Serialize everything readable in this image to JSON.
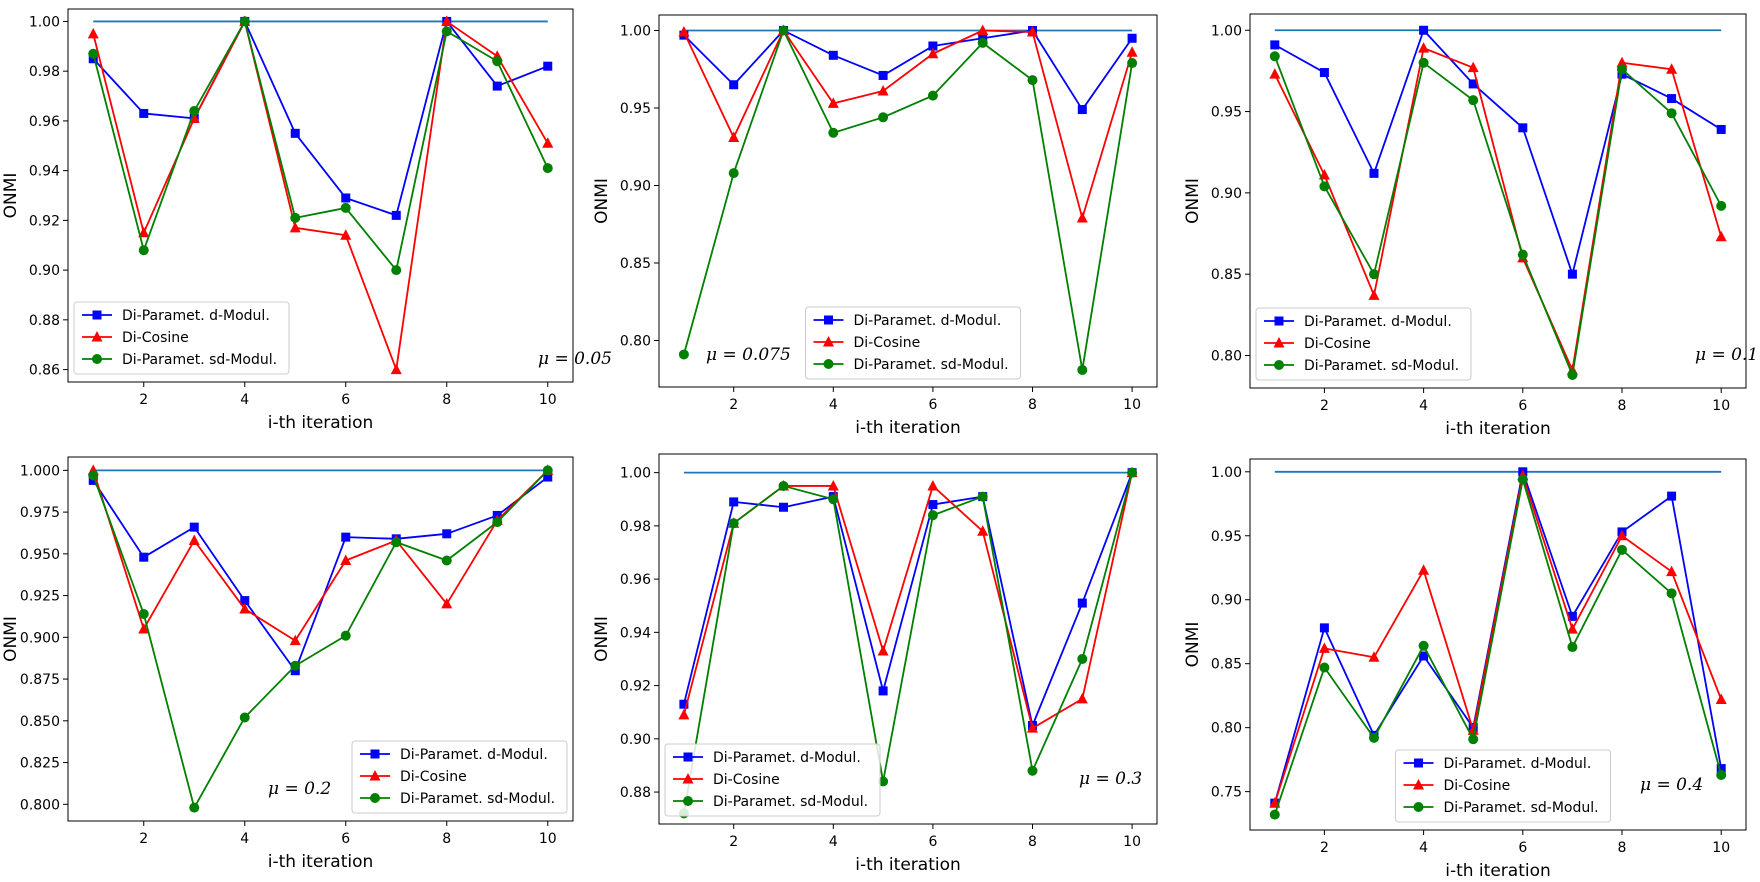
{
  "chart_data": [
    {
      "type": "line",
      "panel": "a",
      "annotation": "μ = 0.05",
      "xlabel": "i-th iteration",
      "ylabel": "ONMI",
      "xlim": [
        0.5,
        10.5
      ],
      "ylim": [
        0.855,
        1.005
      ],
      "xticks": [
        "2",
        "4",
        "6",
        "8",
        "10"
      ],
      "yticks": [
        "0.86",
        "0.88",
        "0.90",
        "0.92",
        "0.94",
        "0.96",
        "0.98",
        "1.00"
      ],
      "legend_position": "lower-left",
      "x": [
        1,
        2,
        3,
        4,
        5,
        6,
        7,
        8,
        9,
        10
      ],
      "series": [
        {
          "name": "",
          "color": "#1f77b4",
          "marker": "none",
          "values": [
            1,
            1,
            1,
            1,
            1,
            1,
            1,
            1,
            1,
            1
          ]
        },
        {
          "name": "Di-Paramet. d-Modul.",
          "color": "#0000ff",
          "marker": "square",
          "values": [
            0.985,
            0.963,
            0.961,
            1.0,
            0.955,
            0.929,
            0.922,
            1.0,
            0.974,
            0.982
          ]
        },
        {
          "name": "Di-Cosine",
          "color": "#ff0000",
          "marker": "triangle",
          "values": [
            0.995,
            0.915,
            0.961,
            1.0,
            0.917,
            0.914,
            0.86,
            1.0,
            0.986,
            0.951
          ]
        },
        {
          "name": "Di-Paramet. sd-Modul.",
          "color": "#008000",
          "marker": "circle",
          "values": [
            0.987,
            0.908,
            0.964,
            1.0,
            0.921,
            0.925,
            0.9,
            0.996,
            0.984,
            0.941
          ]
        }
      ]
    },
    {
      "type": "line",
      "panel": "b",
      "annotation": "μ = 0.075",
      "xlabel": "i-th iteration",
      "ylabel": "ONMI",
      "xlim": [
        0.5,
        10.5
      ],
      "ylim": [
        0.77,
        1.01
      ],
      "xticks": [
        "2",
        "4",
        "6",
        "8",
        "10"
      ],
      "yticks": [
        "0.80",
        "0.85",
        "0.90",
        "0.95",
        "1.00"
      ],
      "legend_position": "lower-center",
      "x": [
        1,
        2,
        3,
        4,
        5,
        6,
        7,
        8,
        9,
        10
      ],
      "series": [
        {
          "name": "",
          "color": "#1f77b4",
          "marker": "none",
          "values": [
            1,
            1,
            1,
            1,
            1,
            1,
            1,
            1,
            1,
            1
          ]
        },
        {
          "name": "Di-Paramet. d-Modul.",
          "color": "#0000ff",
          "marker": "square",
          "values": [
            0.997,
            0.965,
            1.0,
            0.984,
            0.971,
            0.99,
            0.995,
            1.0,
            0.949,
            0.995
          ]
        },
        {
          "name": "Di-Cosine",
          "color": "#ff0000",
          "marker": "triangle",
          "values": [
            0.999,
            0.931,
            1.0,
            0.953,
            0.961,
            0.985,
            1.0,
            0.999,
            0.879,
            0.986
          ]
        },
        {
          "name": "Di-Paramet. sd-Modul.",
          "color": "#008000",
          "marker": "circle",
          "values": [
            0.791,
            0.908,
            1.0,
            0.934,
            0.944,
            0.958,
            0.992,
            0.968,
            0.781,
            0.979
          ]
        }
      ]
    },
    {
      "type": "line",
      "panel": "c",
      "annotation": "μ = 0.1",
      "xlabel": "i-th iteration",
      "ylabel": "ONMI",
      "xlim": [
        0.5,
        10.5
      ],
      "ylim": [
        0.78,
        1.01
      ],
      "xticks": [
        "2",
        "4",
        "6",
        "8",
        "10"
      ],
      "yticks": [
        "0.80",
        "0.85",
        "0.90",
        "0.95",
        "1.00"
      ],
      "legend_position": "lower-left",
      "x": [
        1,
        2,
        3,
        4,
        5,
        6,
        7,
        8,
        9,
        10
      ],
      "series": [
        {
          "name": "",
          "color": "#1f77b4",
          "marker": "none",
          "values": [
            1,
            1,
            1,
            1,
            1,
            1,
            1,
            1,
            1,
            1
          ]
        },
        {
          "name": "Di-Paramet. d-Modul.",
          "color": "#0000ff",
          "marker": "square",
          "values": [
            0.991,
            0.974,
            0.912,
            1.0,
            0.967,
            0.94,
            0.85,
            0.973,
            0.958,
            0.939
          ]
        },
        {
          "name": "Di-Cosine",
          "color": "#ff0000",
          "marker": "triangle",
          "values": [
            0.973,
            0.911,
            0.837,
            0.989,
            0.977,
            0.86,
            0.791,
            0.98,
            0.976,
            0.873
          ]
        },
        {
          "name": "Di-Paramet. sd-Modul.",
          "color": "#008000",
          "marker": "circle",
          "values": [
            0.984,
            0.904,
            0.85,
            0.98,
            0.957,
            0.862,
            0.788,
            0.976,
            0.949,
            0.892
          ]
        }
      ]
    },
    {
      "type": "line",
      "panel": "d",
      "annotation": "μ = 0.2",
      "xlabel": "i-th iteration",
      "ylabel": "ONMI",
      "xlim": [
        0.5,
        10.5
      ],
      "ylim": [
        0.79,
        1.008
      ],
      "xticks": [
        "2",
        "4",
        "6",
        "8",
        "10"
      ],
      "yticks": [
        "0.800",
        "0.825",
        "0.850",
        "0.875",
        "0.900",
        "0.925",
        "0.950",
        "0.975",
        "1.000"
      ],
      "legend_position": "lower-right",
      "x": [
        1,
        2,
        3,
        4,
        5,
        6,
        7,
        8,
        9,
        10
      ],
      "series": [
        {
          "name": "",
          "color": "#1f77b4",
          "marker": "none",
          "values": [
            1,
            1,
            1,
            1,
            1,
            1,
            1,
            1,
            1,
            1
          ]
        },
        {
          "name": "Di-Paramet. d-Modul.",
          "color": "#0000ff",
          "marker": "square",
          "values": [
            0.994,
            0.948,
            0.966,
            0.922,
            0.88,
            0.96,
            0.959,
            0.962,
            0.973,
            0.996
          ]
        },
        {
          "name": "Di-Cosine",
          "color": "#ff0000",
          "marker": "triangle",
          "values": [
            1.0,
            0.905,
            0.958,
            0.917,
            0.898,
            0.946,
            0.958,
            0.92,
            0.97,
            1.0
          ]
        },
        {
          "name": "Di-Paramet. sd-Modul.",
          "color": "#008000",
          "marker": "circle",
          "values": [
            0.997,
            0.914,
            0.798,
            0.852,
            0.883,
            0.901,
            0.957,
            0.946,
            0.969,
            1.0
          ]
        }
      ]
    },
    {
      "type": "line",
      "panel": "e",
      "annotation": "μ = 0.3",
      "xlabel": "i-th iteration",
      "ylabel": "ONMI",
      "xlim": [
        0.5,
        10.5
      ],
      "ylim": [
        0.868,
        1.007
      ],
      "xticks": [
        "2",
        "4",
        "6",
        "8",
        "10"
      ],
      "yticks": [
        "0.88",
        "0.90",
        "0.92",
        "0.94",
        "0.96",
        "0.98",
        "1.00"
      ],
      "legend_position": "lower-left",
      "x": [
        1,
        2,
        3,
        4,
        5,
        6,
        7,
        8,
        9,
        10
      ],
      "series": [
        {
          "name": "",
          "color": "#1f77b4",
          "marker": "none",
          "values": [
            1,
            1,
            1,
            1,
            1,
            1,
            1,
            1,
            1,
            1
          ]
        },
        {
          "name": "Di-Paramet. d-Modul.",
          "color": "#0000ff",
          "marker": "square",
          "values": [
            0.913,
            0.989,
            0.987,
            0.991,
            0.918,
            0.988,
            0.991,
            0.905,
            0.951,
            1.0
          ]
        },
        {
          "name": "Di-Cosine",
          "color": "#ff0000",
          "marker": "triangle",
          "values": [
            0.909,
            0.981,
            0.995,
            0.995,
            0.933,
            0.995,
            0.978,
            0.904,
            0.915,
            1.0
          ]
        },
        {
          "name": "Di-Paramet. sd-Modul.",
          "color": "#008000",
          "marker": "circle",
          "values": [
            0.872,
            0.981,
            0.995,
            0.99,
            0.884,
            0.984,
            0.991,
            0.888,
            0.93,
            1.0
          ]
        }
      ]
    },
    {
      "type": "line",
      "panel": "f",
      "annotation": "μ = 0.4",
      "xlabel": "i-th iteration",
      "ylabel": "ONMI",
      "xlim": [
        0.5,
        10.5
      ],
      "ylim": [
        0.72,
        1.01
      ],
      "xticks": [
        "2",
        "4",
        "6",
        "8",
        "10"
      ],
      "yticks": [
        "0.75",
        "0.80",
        "0.85",
        "0.90",
        "0.95",
        "1.00"
      ],
      "legend_position": "lower-center",
      "x": [
        1,
        2,
        3,
        4,
        5,
        6,
        7,
        8,
        9,
        10
      ],
      "series": [
        {
          "name": "",
          "color": "#1f77b4",
          "marker": "none",
          "values": [
            1,
            1,
            1,
            1,
            1,
            1,
            1,
            1,
            1,
            1
          ]
        },
        {
          "name": "Di-Paramet. d-Modul.",
          "color": "#0000ff",
          "marker": "square",
          "values": [
            0.741,
            0.878,
            0.794,
            0.856,
            0.8,
            1.0,
            0.887,
            0.953,
            0.981,
            0.768
          ]
        },
        {
          "name": "Di-Cosine",
          "color": "#ff0000",
          "marker": "triangle",
          "values": [
            0.741,
            0.862,
            0.855,
            0.923,
            0.798,
            0.997,
            0.877,
            0.95,
            0.922,
            0.822
          ]
        },
        {
          "name": "Di-Paramet. sd-Modul.",
          "color": "#008000",
          "marker": "circle",
          "values": [
            0.732,
            0.847,
            0.792,
            0.864,
            0.791,
            0.994,
            0.863,
            0.939,
            0.905,
            0.763
          ]
        }
      ]
    }
  ]
}
